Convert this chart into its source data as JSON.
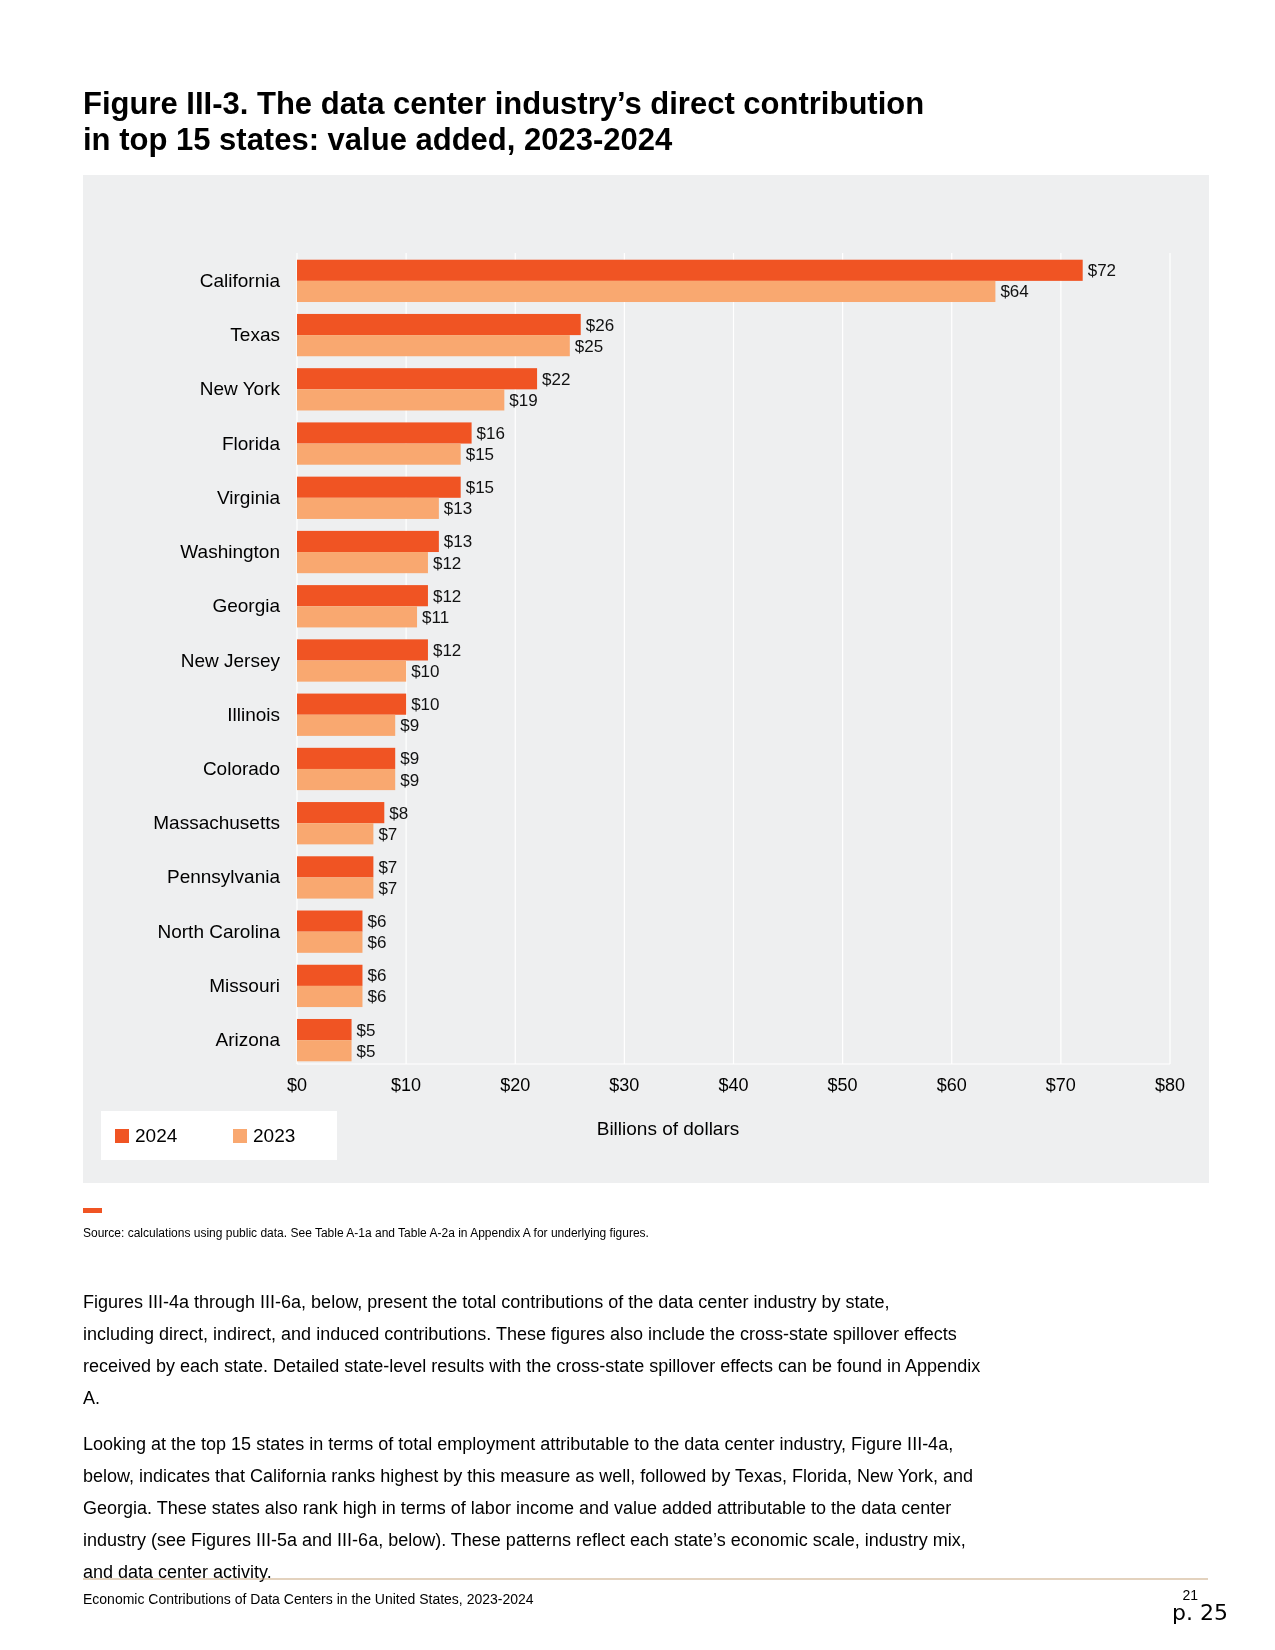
{
  "chart_data": {
    "type": "bar",
    "orientation": "horizontal",
    "title": "Figure III-3. The data center industry’s direct contribution in top 15 states: value added, 2023-2024",
    "xlabel": "Billions of dollars",
    "categories": [
      "California",
      "Texas",
      "New York",
      "Florida",
      "Virginia",
      "Washington",
      "Georgia",
      "New Jersey",
      "Illinois",
      "Colorado",
      "Massachusetts",
      "Pennsylvania",
      "North Carolina",
      "Missouri",
      "Arizona"
    ],
    "series": [
      {
        "name": "2024",
        "color": "#f05423",
        "values": [
          72,
          26,
          22,
          16,
          15,
          13,
          12,
          12,
          10,
          9,
          8,
          7,
          6,
          6,
          5
        ],
        "value_labels": [
          "$72",
          "$26",
          "$22",
          "$16",
          "$15",
          "$13",
          "$12",
          "$12",
          "$10",
          "$9",
          "$8",
          "$7",
          "$6",
          "$6",
          "$5"
        ]
      },
      {
        "name": "2023",
        "color": "#f9a870",
        "values": [
          64,
          25,
          19,
          15,
          13,
          12,
          11,
          10,
          9,
          9,
          7,
          7,
          6,
          6,
          5
        ],
        "value_labels": [
          "$64",
          "$25",
          "$19",
          "$15",
          "$13",
          "$12",
          "$11",
          "$10",
          "$9",
          "$9",
          "$7",
          "$7",
          "$6",
          "$6",
          "$5"
        ]
      }
    ],
    "xlim": [
      0,
      80
    ],
    "xticks": [
      {
        "value": 0,
        "label": "$0"
      },
      {
        "value": 10,
        "label": "$10"
      },
      {
        "value": 20,
        "label": "$20"
      },
      {
        "value": 30,
        "label": "$30"
      },
      {
        "value": 40,
        "label": "$40"
      },
      {
        "value": 50,
        "label": "$50"
      },
      {
        "value": 60,
        "label": "$60"
      },
      {
        "value": 70,
        "label": "$70"
      },
      {
        "value": 80,
        "label": "$80"
      }
    ],
    "grid": "x",
    "legend": "bottom left",
    "annotations": [
      "Source: calculations using public data. See Table A-1a and Table A-2a in Appendix A for underlying figures.",
      "Figures III-4a through III-6a, below, present the total contributions of the data center industry by state, including direct, indirect, and induced contributions. These figures also include the cross-state spillover effects received by each state. Detailed state-level results with the cross-state spillover effects can be found in Appendix A.",
      "Looking at the top 15 states in terms of total employment attributable to the data center industry, Figure III-4a, below, indicates that California ranks highest by this measure as well, followed by Texas, Florida, New York, and Georgia. These states also rank high in terms of labor income and value added attributable to the data center industry (see Figures III-5a and III-6a, below). These patterns reflect each state’s economic scale, industry mix, and data center activity.",
      "Economic Contributions of Data Centers in the United States, 2023-2024",
      "21",
      "p. 25"
    ]
  }
}
